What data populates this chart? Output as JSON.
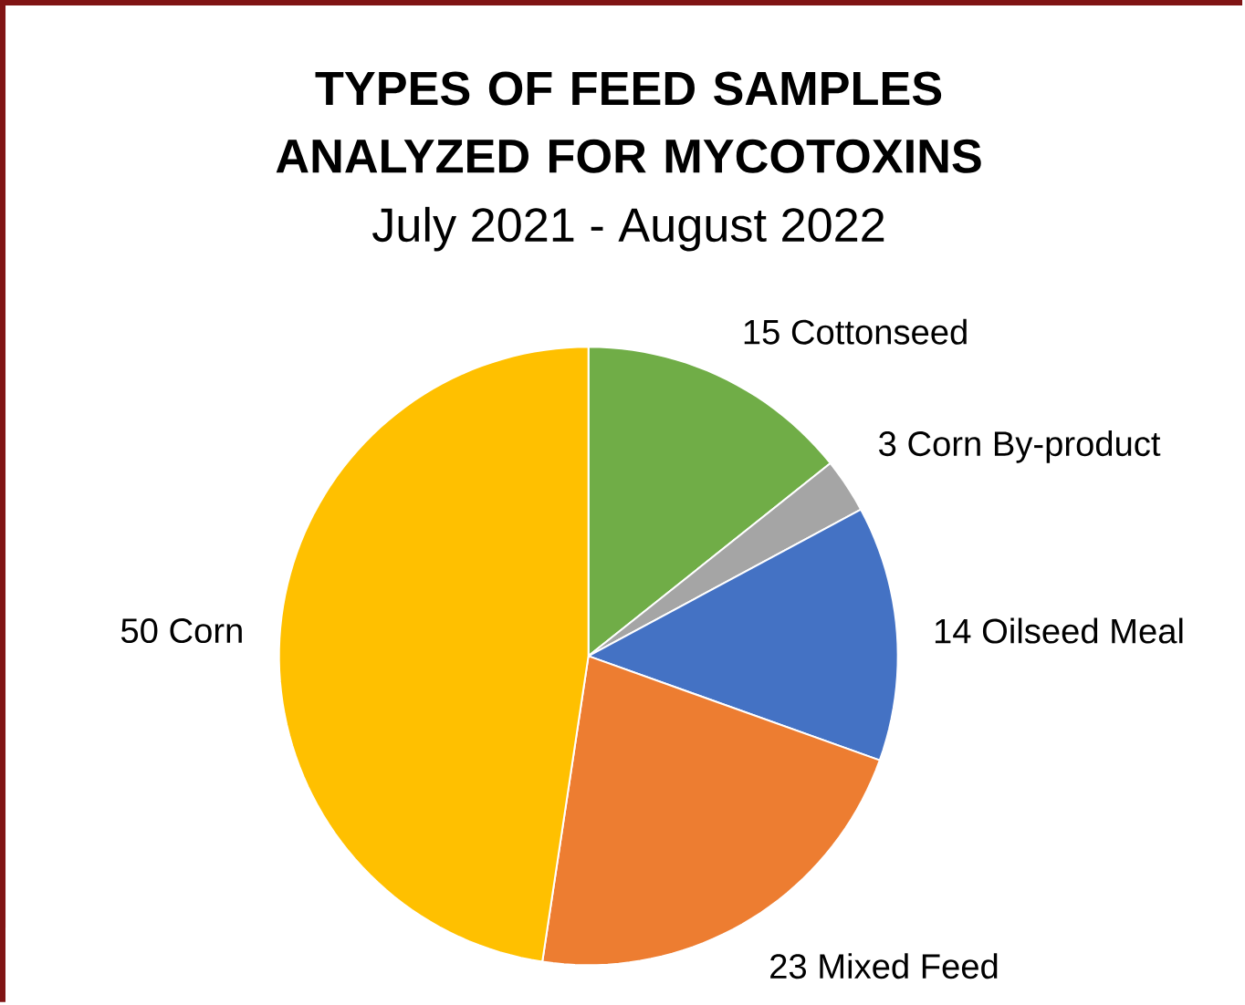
{
  "chart_data": {
    "type": "pie",
    "title": "TYPES OF FEED SAMPLES ANALYZED FOR MYCOTOXINS",
    "subtitle": "July 2021 - August 2022",
    "categories": [
      "Cottonseed",
      "Corn By-product",
      "Oilseed Meal",
      "Mixed Feed",
      "Corn"
    ],
    "values": [
      15,
      3,
      14,
      23,
      50
    ],
    "colors": [
      "#70ad47",
      "#a5a5a5",
      "#4472c4",
      "#ed7d31",
      "#ffc000"
    ],
    "data_labels": true
  }
}
